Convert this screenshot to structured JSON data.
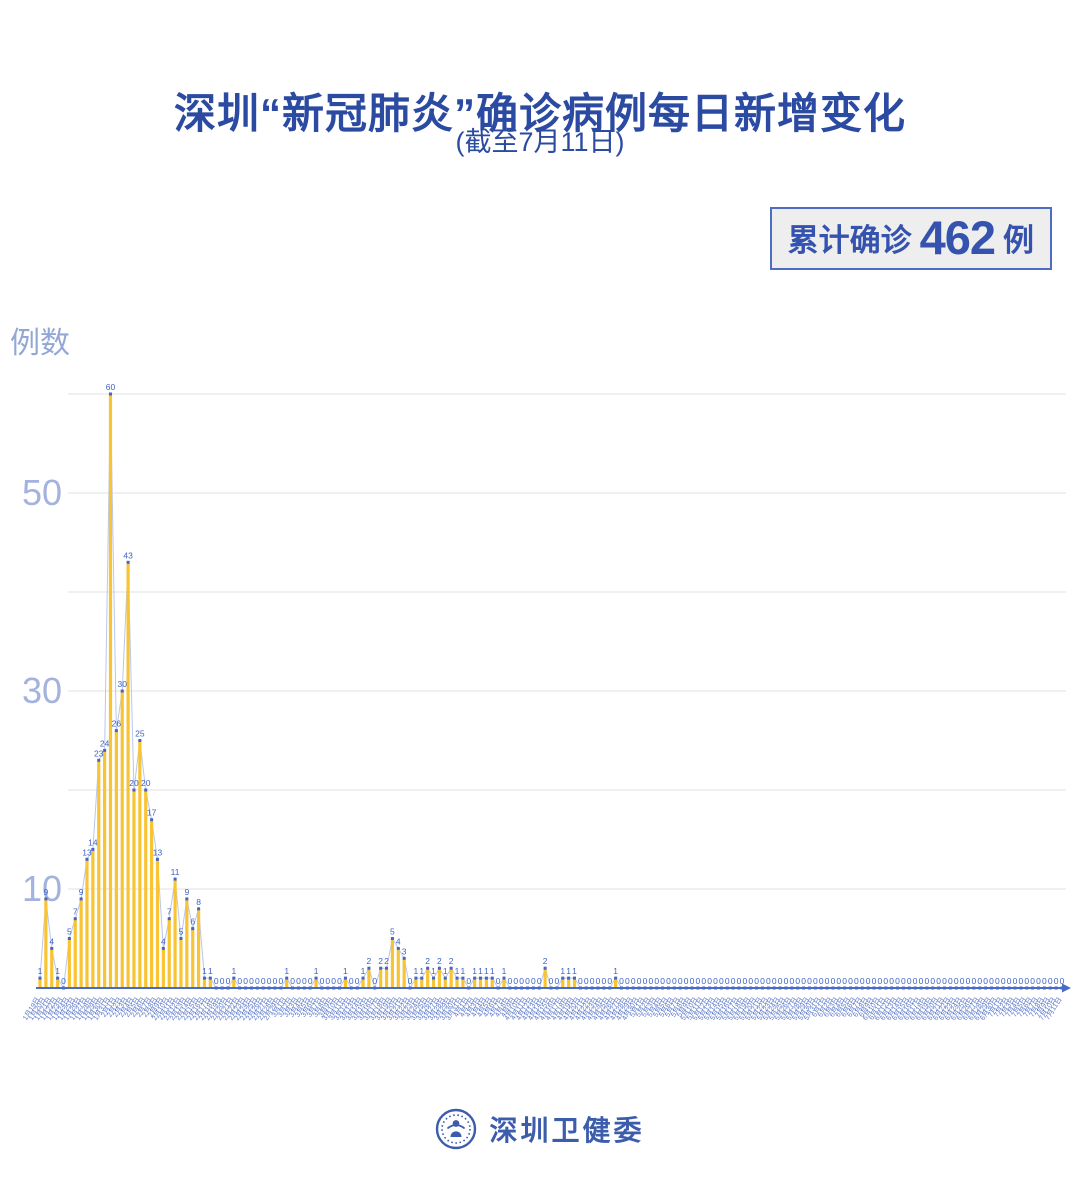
{
  "title": "深圳“新冠肺炎”确诊病例每日新增变化",
  "subtitle": "(截至7月11日)",
  "badge": {
    "prefix": "累计确诊",
    "value": "462",
    "suffix": "例"
  },
  "y_axis_title": "例数",
  "footer": {
    "org": "深圳卫健委",
    "logo": "shenzhen-health-commission-emblem"
  },
  "colors": {
    "title_blue": "#2b4aa2",
    "bar_yellow": "#f9c433",
    "dot_blue": "#4365c6",
    "line_blue": "#b9c7ec",
    "axis_blue": "#4a6ac8",
    "label_blue": "#3f62c5",
    "ytick_blue": "#a3b3de",
    "gridline_gray": "#e7e7e7",
    "badge_bg": "#eeeeee"
  },
  "chart_data": {
    "type": "area",
    "title": "深圳“新冠肺炎”确诊病例每日新增变化",
    "subtitle": "(截至7月11日)",
    "ylabel": "例数",
    "xlabel": "",
    "ylim": [
      0,
      62
    ],
    "grid": true,
    "gridlines": [
      10,
      20,
      30,
      40,
      50,
      60
    ],
    "yticks_labeled": [
      10,
      30,
      50
    ],
    "total_label": "累计确诊 462 例",
    "total": 462,
    "x": [
      "1月19日",
      "1月20日",
      "1月21日",
      "1月22日",
      "1月23日",
      "1月24日",
      "1月25日",
      "1月26日",
      "1月27日",
      "1月28日",
      "1月29日",
      "1月30日",
      "1月31日",
      "2月1日",
      "2月2日",
      "2月3日",
      "2月4日",
      "2月5日",
      "2月6日",
      "2月7日",
      "2月8日",
      "2月9日",
      "2月10日",
      "2月11日",
      "2月12日",
      "2月13日",
      "2月14日",
      "2月15日",
      "2月16日",
      "2月17日",
      "2月18日",
      "2月19日",
      "2月20日",
      "2月21日",
      "2月22日",
      "2月23日",
      "2月24日",
      "2月25日",
      "2月26日",
      "2月27日",
      "2月28日",
      "2月29日",
      "3月1日",
      "3月2日",
      "3月3日",
      "3月4日",
      "3月5日",
      "3月6日",
      "3月7日",
      "3月8日",
      "3月9日",
      "3月10日",
      "3月11日",
      "3月12日",
      "3月13日",
      "3月14日",
      "3月15日",
      "3月16日",
      "3月17日",
      "3月18日",
      "3月19日",
      "3月20日",
      "3月21日",
      "3月22日",
      "3月23日",
      "3月24日",
      "3月25日",
      "3月26日",
      "3月27日",
      "3月28日",
      "3月29日",
      "3月30日",
      "3月31日",
      "4月1日",
      "4月2日",
      "4月3日",
      "4月4日",
      "4月5日",
      "4月6日",
      "4月7日",
      "4月8日",
      "4月9日",
      "4月10日",
      "4月11日",
      "4月12日",
      "4月13日",
      "4月14日",
      "4月15日",
      "4月16日",
      "4月17日",
      "4月18日",
      "4月19日",
      "4月20日",
      "4月21日",
      "4月22日",
      "4月23日",
      "4月24日",
      "4月25日",
      "4月26日",
      "4月27日",
      "4月28日",
      "4月29日",
      "4月30日",
      "5月1日",
      "5月2日",
      "5月3日",
      "5月4日",
      "5月5日",
      "5月6日",
      "5月7日",
      "5月8日",
      "5月9日",
      "5月10日",
      "5月11日",
      "5月12日",
      "5月13日",
      "5月14日",
      "5月15日",
      "5月16日",
      "5月17日",
      "5月18日",
      "5月19日",
      "5月20日",
      "5月21日",
      "5月22日",
      "5月23日",
      "5月24日",
      "5月25日",
      "5月26日",
      "5月27日",
      "5月28日",
      "5月29日",
      "5月30日",
      "5月31日",
      "6月1日",
      "6月2日",
      "6月3日",
      "6月4日",
      "6月5日",
      "6月6日",
      "6月7日",
      "6月8日",
      "6月9日",
      "6月10日",
      "6月11日",
      "6月12日",
      "6月13日",
      "6月14日",
      "6月15日",
      "6月16日",
      "6月17日",
      "6月18日",
      "6月19日",
      "6月20日",
      "6月21日",
      "6月22日",
      "6月23日",
      "6月24日",
      "6月25日",
      "6月26日",
      "6月27日",
      "6月28日",
      "6月29日",
      "6月30日",
      "7月1日",
      "7月2日",
      "7月3日",
      "7月4日",
      "7月5日",
      "7月6日",
      "7月7日",
      "7月8日",
      "7月9日",
      "7月10日",
      "7月11日"
    ],
    "values": [
      1,
      9,
      4,
      1,
      0,
      5,
      7,
      9,
      13,
      14,
      23,
      24,
      60,
      26,
      30,
      43,
      20,
      25,
      20,
      17,
      13,
      4,
      7,
      11,
      5,
      9,
      6,
      8,
      1,
      1,
      0,
      0,
      0,
      1,
      0,
      0,
      0,
      0,
      0,
      0,
      0,
      0,
      1,
      0,
      0,
      0,
      0,
      1,
      0,
      0,
      0,
      0,
      1,
      0,
      0,
      1,
      2,
      0,
      2,
      2,
      5,
      4,
      3,
      0,
      1,
      1,
      2,
      1,
      2,
      1,
      2,
      1,
      1,
      0,
      1,
      1,
      1,
      1,
      0,
      1,
      0,
      0,
      0,
      0,
      0,
      0,
      2,
      0,
      0,
      1,
      1,
      1,
      0,
      0,
      0,
      0,
      0,
      0,
      1,
      0,
      0,
      0,
      0,
      0,
      0,
      0,
      0,
      0,
      0,
      0,
      0,
      0,
      0,
      0,
      0,
      0,
      0,
      0,
      0,
      0,
      0,
      0,
      0,
      0,
      0,
      0,
      0,
      0,
      0,
      0,
      0,
      0,
      0,
      0,
      0,
      0,
      0,
      0,
      0,
      0,
      0,
      0,
      0,
      0,
      0,
      0,
      0,
      0,
      0,
      0,
      0,
      0,
      0,
      0,
      0,
      0,
      0,
      0,
      0,
      0,
      0,
      0,
      0,
      0,
      0,
      0,
      0,
      0,
      0,
      0,
      0,
      0,
      0,
      0,
      0
    ]
  }
}
